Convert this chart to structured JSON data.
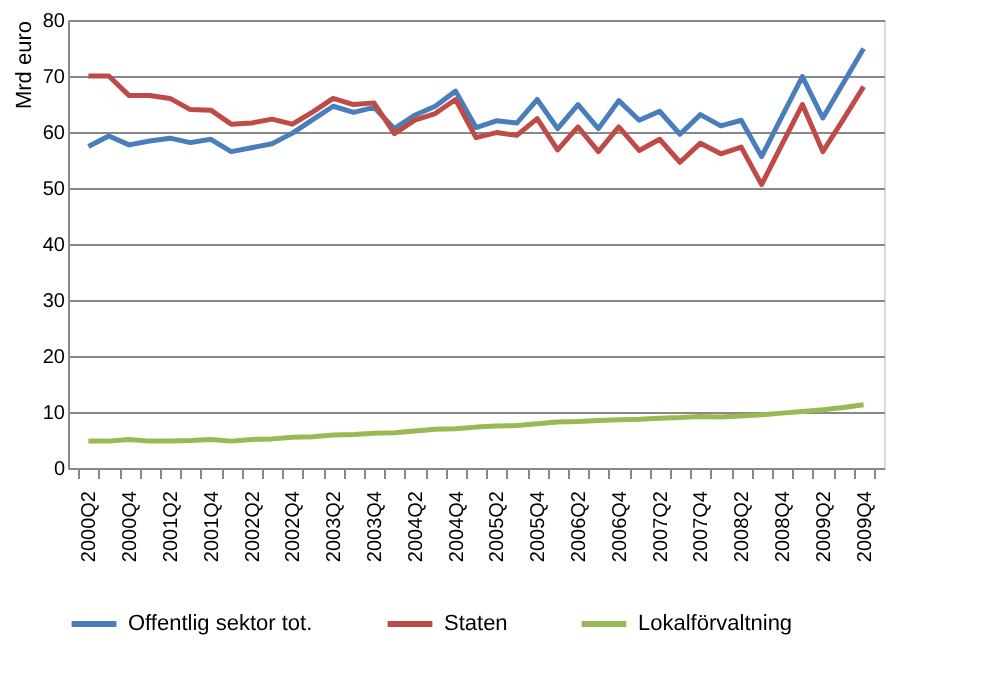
{
  "chart_data": {
    "type": "line",
    "ylabel": "Mrd euro",
    "categories": [
      "2000Q2",
      null,
      "2000Q4",
      null,
      "2001Q2",
      null,
      "2001Q4",
      null,
      "2002Q2",
      null,
      "2002Q4",
      null,
      "2003Q2",
      null,
      "2003Q4",
      null,
      "2004Q2",
      null,
      "2004Q4",
      null,
      "2005Q2",
      null,
      "2005Q4",
      null,
      "2006Q2",
      null,
      "2006Q4",
      null,
      "2007Q2",
      null,
      "2007Q4",
      null,
      "2008Q2",
      null,
      "2008Q4",
      null,
      "2009Q2",
      null,
      "2009Q4"
    ],
    "series": [
      {
        "name": "Offentlig sektor tot.",
        "color": "#4a7ebb",
        "values": [
          57.4,
          59.3,
          57.7,
          58.4,
          58.9,
          58.1,
          58.7,
          56.5,
          57.2,
          57.9,
          59.8,
          62.2,
          64.6,
          63.5,
          64.4,
          60.6,
          63.0,
          64.6,
          67.3,
          60.8,
          62.0,
          61.6,
          65.8,
          60.6,
          64.9,
          60.6,
          65.6,
          62.1,
          63.7,
          59.6,
          63.1,
          61.1,
          62.1,
          55.6,
          62.8,
          69.9,
          62.5,
          68.7,
          74.9
        ]
      },
      {
        "name": "Staten",
        "color": "#be4b48",
        "values": [
          70.0,
          70.0,
          66.5,
          66.5,
          66.0,
          64.0,
          63.9,
          61.4,
          61.6,
          62.3,
          61.4,
          63.6,
          66.0,
          64.9,
          65.2,
          59.7,
          62.1,
          63.3,
          65.8,
          59.0,
          59.9,
          59.4,
          62.4,
          56.8,
          60.9,
          56.5,
          60.9,
          56.7,
          58.7,
          54.6,
          58.0,
          56.1,
          57.3,
          50.6,
          57.8,
          64.9,
          56.5,
          62.2,
          68.1
        ]
      },
      {
        "name": "Lokalförvaltning",
        "color": "#98b954",
        "values": [
          4.8,
          4.8,
          5.1,
          4.8,
          4.8,
          4.9,
          5.1,
          4.8,
          5.1,
          5.2,
          5.5,
          5.6,
          5.9,
          6.0,
          6.2,
          6.3,
          6.6,
          6.9,
          7.0,
          7.3,
          7.5,
          7.6,
          7.9,
          8.2,
          8.3,
          8.5,
          8.6,
          8.7,
          8.9,
          9.0,
          9.2,
          9.1,
          9.3,
          9.5,
          9.8,
          10.1,
          10.4,
          10.8,
          11.3
        ]
      }
    ],
    "ylim": [
      0,
      80
    ],
    "yticks": [
      0,
      10,
      20,
      30,
      40,
      50,
      60,
      70,
      80
    ],
    "grid": "y",
    "legend": "bottom",
    "marker": "none",
    "line_style": "solid"
  }
}
